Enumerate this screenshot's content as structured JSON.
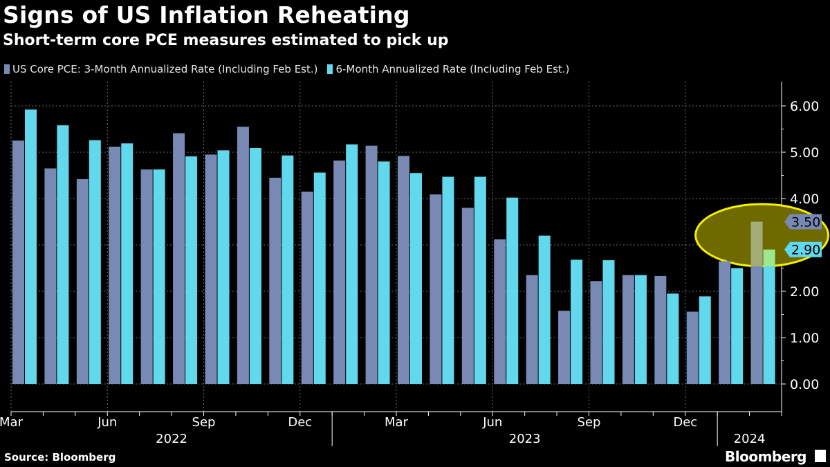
{
  "header": {
    "title": "Signs of US Inflation Reheating",
    "subtitle": "Short-term core PCE measures estimated to pick up"
  },
  "footer": {
    "source": "Source: Bloomberg",
    "brand": "Bloomberg"
  },
  "colors": {
    "series_3m": "#7889b3",
    "series_6m": "#61d8eb",
    "highlight_fill": "#6f6a00",
    "highlight_stroke": "#f4f000",
    "est_3m": "#a4ad77",
    "est_6m": "#9de88f"
  },
  "chart_data": {
    "type": "bar",
    "title": "Signs of US Inflation Reheating",
    "subtitle": "Short-term core PCE measures estimated to pick up",
    "xlabel": "",
    "ylabel": "",
    "ylim": [
      -0.55,
      6.5
    ],
    "yticks": [
      "0.00",
      "1.00",
      "2.00",
      "3.00",
      "4.00",
      "5.00",
      "6.00"
    ],
    "grid": true,
    "legend_position": "top-left",
    "categories": [
      "Mar 2022",
      "Apr 2022",
      "May 2022",
      "Jun 2022",
      "Jul 2022",
      "Aug 2022",
      "Sep 2022",
      "Oct 2022",
      "Nov 2022",
      "Dec 2022",
      "Jan 2023",
      "Feb 2023",
      "Mar 2023",
      "Apr 2023",
      "May 2023",
      "Jun 2023",
      "Jul 2023",
      "Aug 2023",
      "Sep 2023",
      "Oct 2023",
      "Nov 2023",
      "Dec 2023",
      "Jan 2024",
      "Feb 2024"
    ],
    "x_month_labels": [
      {
        "index": 0,
        "label": "Mar"
      },
      {
        "index": 3,
        "label": "Jun"
      },
      {
        "index": 6,
        "label": "Sep"
      },
      {
        "index": 9,
        "label": "Dec"
      },
      {
        "index": 12,
        "label": "Mar"
      },
      {
        "index": 15,
        "label": "Jun"
      },
      {
        "index": 18,
        "label": "Sep"
      },
      {
        "index": 21,
        "label": "Dec"
      }
    ],
    "x_year_labels": [
      {
        "from": 0,
        "to": 9,
        "label": "2022"
      },
      {
        "from": 10,
        "to": 21,
        "label": "2023"
      },
      {
        "from": 22,
        "to": 23,
        "label": "2024"
      }
    ],
    "series": [
      {
        "name": "US Core PCE: 3-Month Annualized Rate (Including Feb Est.)",
        "values": [
          5.25,
          4.65,
          4.42,
          5.12,
          4.63,
          5.41,
          4.95,
          5.55,
          4.45,
          4.15,
          4.82,
          5.14,
          4.92,
          4.09,
          3.8,
          3.12,
          2.35,
          1.58,
          2.22,
          2.35,
          2.33,
          1.56,
          2.65,
          3.5
        ]
      },
      {
        "name": "6-Month Annualized Rate (Including Feb Est.)",
        "values": [
          5.92,
          5.58,
          5.26,
          5.19,
          4.63,
          4.91,
          5.04,
          5.09,
          4.93,
          4.56,
          5.17,
          4.8,
          4.55,
          4.47,
          4.47,
          4.02,
          3.2,
          2.68,
          2.67,
          2.35,
          1.95,
          1.89,
          2.5,
          2.9
        ]
      }
    ],
    "latest_labels": [
      {
        "series": 0,
        "value": "3.50"
      },
      {
        "series": 1,
        "value": "2.90"
      }
    ],
    "annotation": "Feb 2024 estimates highlighted"
  }
}
